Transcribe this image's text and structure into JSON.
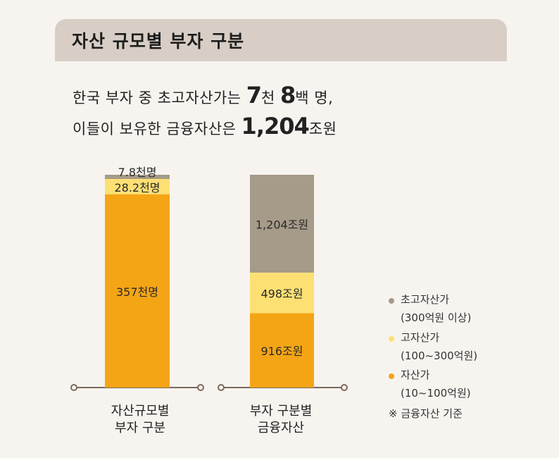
{
  "title": "자산 규모별 부자 구분",
  "headline": {
    "line1_pre": "한국 부자 중 초고자산가는 ",
    "line1_big1": "7",
    "line1_mid1": "천 ",
    "line1_big2": "8",
    "line1_post": "백 명,",
    "line2_pre": "이들이 보유한 금융자산은 ",
    "line2_big": "1,204",
    "line2_post": "조원"
  },
  "colors": {
    "ultra": "#a69a88",
    "high": "#fde074",
    "asset": "#f4a516",
    "axis": "#7a6a5a",
    "titlebar": "#d8cec6"
  },
  "chart_data": [
    {
      "type": "bar",
      "stacked": true,
      "category_label": [
        "자산규모별",
        "부자 구분"
      ],
      "series": [
        {
          "name": "자산가",
          "value": 357,
          "label": "357천명"
        },
        {
          "name": "고자산가",
          "value": 28.2,
          "label": "28.2천명"
        },
        {
          "name": "초고자산가",
          "value": 7.8,
          "label": "7.8천명"
        }
      ]
    },
    {
      "type": "bar",
      "stacked": true,
      "category_label": [
        "부자 구분별",
        "금융자산"
      ],
      "series": [
        {
          "name": "자산가",
          "value": 916,
          "label": "916조원"
        },
        {
          "name": "고자산가",
          "value": 498,
          "label": "498조원"
        },
        {
          "name": "초고자산가",
          "value": 1204,
          "label": "1,204조원"
        }
      ]
    }
  ],
  "legend": [
    {
      "name": "초고자산가",
      "sub": "(300억원 이상)",
      "color_key": "ultra"
    },
    {
      "name": "고자산가",
      "sub": "(100~300억원)",
      "color_key": "high"
    },
    {
      "name": "자산가",
      "sub": "(10~100억원)",
      "color_key": "asset"
    }
  ],
  "note": "※ 금융자산 기준"
}
